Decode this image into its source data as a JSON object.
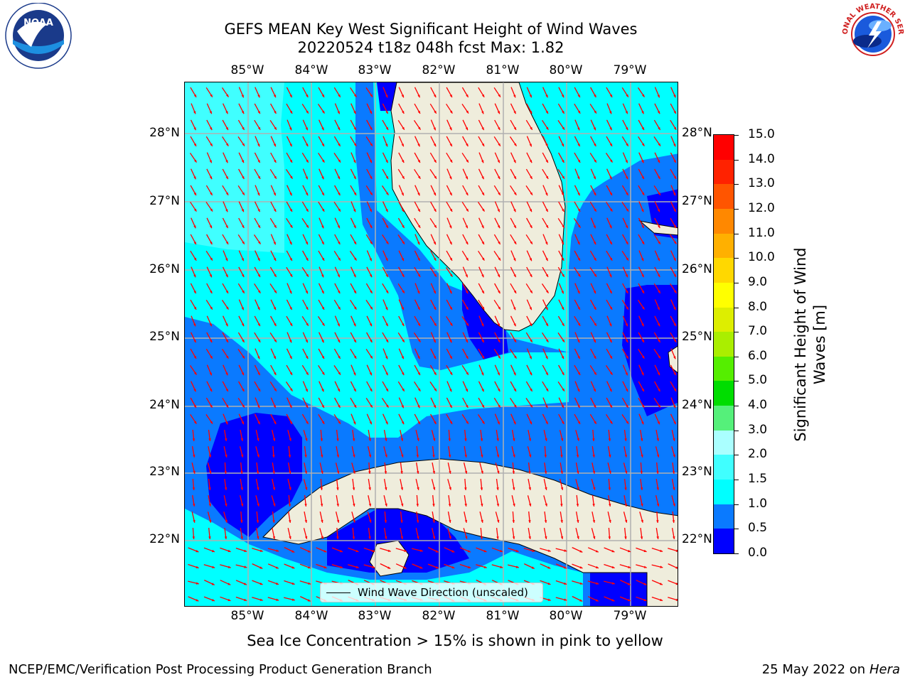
{
  "title_line1": "GEFS MEAN Key West Significant Height of Wind Waves",
  "title_line2": "20220524 t18z 048h fcst   Max: 1.82",
  "lon_labels": [
    "85°W",
    "84°W",
    "83°W",
    "82°W",
    "81°W",
    "80°W",
    "79°W"
  ],
  "lat_labels": [
    "28°N",
    "27°N",
    "26°N",
    "25°N",
    "24°N",
    "23°N",
    "22°N"
  ],
  "legend_label": "Wind Wave Direction (unscaled)",
  "colorbar": {
    "title_line1": "Significant Height of Wind",
    "title_line2": "Waves [m]",
    "tick_labels": [
      "15.0",
      "14.0",
      "13.0",
      "12.0",
      "11.0",
      "10.0",
      "9.0",
      "8.0",
      "7.0",
      "6.0",
      "5.0",
      "4.0",
      "3.0",
      "2.0",
      "1.5",
      "1.0",
      "0.5",
      "0.0"
    ],
    "colors_bottom_to_top": [
      "#0000ff",
      "#0a7aff",
      "#00ffff",
      "#40ffff",
      "#aaffff",
      "#55f07a",
      "#00dd00",
      "#55ee00",
      "#aaee00",
      "#ddee00",
      "#ffff00",
      "#ffd800",
      "#ffb000",
      "#ff8800",
      "#ff5500",
      "#ff2200",
      "#ff0000"
    ]
  },
  "note": "Sea Ice Concentration > 15% is shown in pink to yellow",
  "footer_left": "NCEP/EMC/Verification Post Processing Product Generation Branch",
  "footer_date": "25 May 2022 on",
  "footer_host": "Hera",
  "logo_left_text": "NOAA",
  "logo_right_text": "NATIONAL WEATHER SERVICE",
  "colors": {
    "land": "#efeddc",
    "arrow": "#ff0000",
    "grid": "#b0b0b0"
  }
}
